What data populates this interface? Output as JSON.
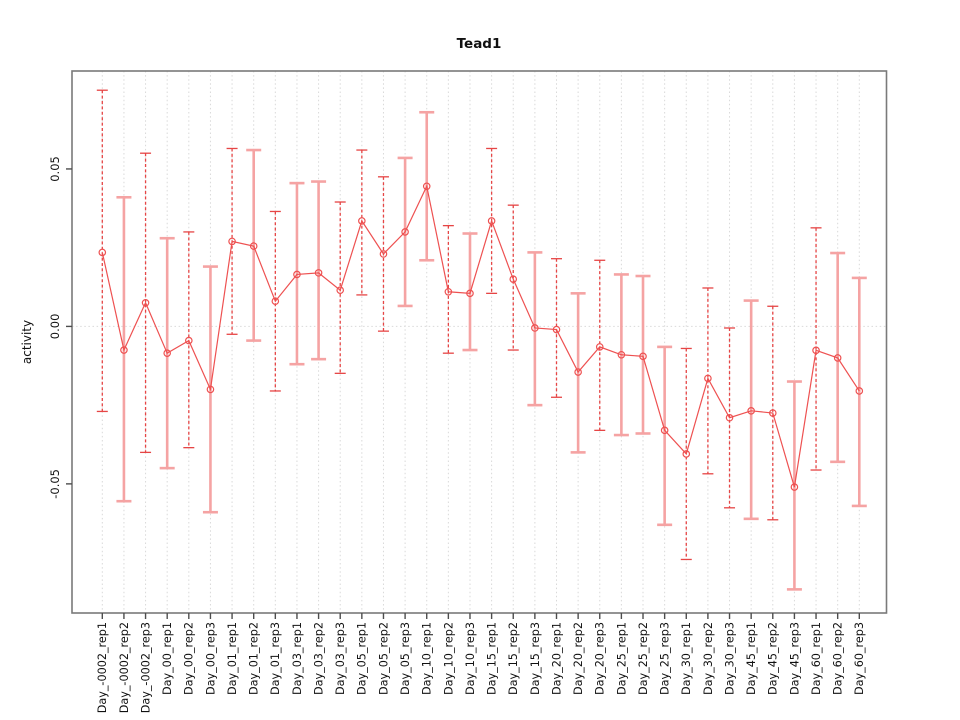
{
  "title": "Tead1",
  "axes": {
    "y_label": "activity",
    "y_tick_labels": [
      "0.05",
      "0.00",
      "-0.05"
    ],
    "y_tick_values": [
      0.05,
      0.0,
      -0.05
    ]
  },
  "chart_data": {
    "type": "line",
    "title": "Tead1",
    "xlabel": "",
    "ylabel": "activity",
    "legend": "none",
    "ylim": [
      -0.091,
      0.0811
    ],
    "y_ticks": [
      0.05,
      0.0,
      -0.05
    ],
    "grid": {
      "vertical": "dotted line at every category",
      "horizontal": "dotted line at y=0"
    },
    "marker": "open-circle",
    "error_bars": true,
    "categories": [
      "Day_-0002_rep1",
      "Day_-0002_rep2",
      "Day_-0002_rep3",
      "Day_00_rep1",
      "Day_00_rep2",
      "Day_00_rep3",
      "Day_01_rep1",
      "Day_01_rep2",
      "Day_01_rep3",
      "Day_03_rep1",
      "Day_03_rep2",
      "Day_03_rep3",
      "Day_05_rep1",
      "Day_05_rep2",
      "Day_05_rep3",
      "Day_10_rep1",
      "Day_10_rep2",
      "Day_10_rep3",
      "Day_15_rep1",
      "Day_15_rep2",
      "Day_15_rep3",
      "Day_20_rep1",
      "Day_20_rep2",
      "Day_20_rep3",
      "Day_25_rep1",
      "Day_25_rep2",
      "Day_25_rep3",
      "Day_30_rep1",
      "Day_30_rep2",
      "Day_30_rep3",
      "Day_45_rep1",
      "Day_45_rep2",
      "Day_45_rep3",
      "Day_60_rep1",
      "Day_60_rep2",
      "Day_60_rep3"
    ],
    "series": [
      {
        "name": "mean_activity",
        "values": [
          0.0235,
          -0.0075,
          0.0075,
          -0.0085,
          -0.0045,
          -0.02,
          0.027,
          0.0255,
          0.008,
          0.0165,
          0.017,
          0.0115,
          0.0335,
          0.023,
          0.03,
          0.0445,
          0.011,
          0.0105,
          0.0335,
          0.015,
          -0.0005,
          -0.001,
          -0.0145,
          -0.0065,
          -0.009,
          -0.0095,
          -0.033,
          -0.0405,
          -0.0165,
          -0.029,
          -0.0268,
          -0.0275,
          -0.051,
          -0.0076,
          -0.01,
          -0.0205
        ]
      },
      {
        "name": "upper_whisker",
        "values": [
          0.075,
          0.041,
          0.055,
          0.028,
          0.03,
          0.019,
          0.0565,
          0.056,
          0.0365,
          0.0455,
          0.046,
          0.0395,
          0.056,
          0.0475,
          0.0535,
          0.068,
          0.032,
          0.0295,
          0.0565,
          0.0385,
          0.0235,
          0.0215,
          0.0105,
          0.021,
          0.0165,
          0.016,
          -0.0065,
          -0.007,
          0.0122,
          -0.0005,
          0.0082,
          0.0064,
          -0.0175,
          0.0313,
          0.0233,
          0.0154
        ]
      },
      {
        "name": "lower_whisker",
        "values": [
          -0.027,
          -0.0555,
          -0.04,
          -0.045,
          -0.0385,
          -0.059,
          -0.0025,
          -0.0045,
          -0.0205,
          -0.012,
          -0.0104,
          -0.0149,
          0.01,
          -0.0015,
          0.0065,
          0.021,
          -0.0085,
          -0.0075,
          0.0105,
          -0.0075,
          -0.025,
          -0.0225,
          -0.04,
          -0.033,
          -0.0345,
          -0.034,
          -0.063,
          -0.074,
          -0.0468,
          -0.0576,
          -0.0611,
          -0.0614,
          -0.0835,
          -0.0456,
          -0.043,
          -0.057
        ]
      }
    ],
    "whisker_styles": [
      "dashed",
      "solid",
      "dashed",
      "solid",
      "dashed",
      "solid",
      "dashed",
      "solid",
      "dashed",
      "solid",
      "solid",
      "dashed",
      "dashed",
      "dashed",
      "solid",
      "solid",
      "dashed",
      "solid",
      "dashed",
      "dashed",
      "solid",
      "dashed",
      "solid",
      "dashed",
      "solid",
      "solid",
      "solid",
      "dashed",
      "dashed",
      "dashed",
      "solid",
      "dashed",
      "solid",
      "dashed",
      "solid",
      "solid"
    ],
    "colors": {
      "line": "#ee5151",
      "marker": "#ee5151",
      "whisker_dashed": "#e64545",
      "whisker_solid": "#f5a3a3",
      "grid": "#d9d9d9",
      "box": "#7a7a7a",
      "tick": "#4d4d4d",
      "text": "#111111"
    }
  }
}
